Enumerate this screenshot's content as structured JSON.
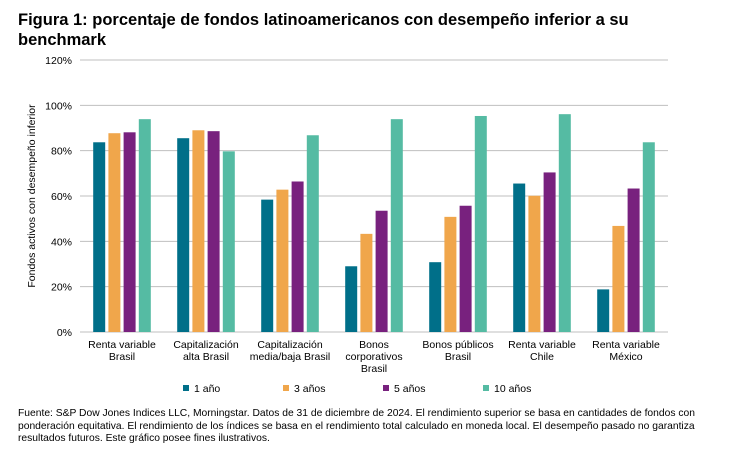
{
  "chart_data": {
    "type": "bar",
    "title": "Figura 1: porcentaje de fondos latinoamericanos con desempeño inferior a su benchmark",
    "ylabel": "Fondos activos con desempeño inferior",
    "xlabel": "",
    "ylim": [
      0,
      120
    ],
    "yticks": [
      "0%",
      "20%",
      "40%",
      "60%",
      "80%",
      "100%",
      "120%"
    ],
    "grid": true,
    "legend_position": "bottom",
    "categories": [
      [
        "Renta variable",
        "Brasil"
      ],
      [
        "Capitalización",
        "alta Brasil"
      ],
      [
        "Capitalización",
        "media/baja Brasil"
      ],
      [
        "Bonos",
        "corporativos",
        "Brasil"
      ],
      [
        "Bonos públicos",
        "Brasil"
      ],
      [
        "Renta variable",
        "Chile"
      ],
      [
        "Renta variable",
        "México"
      ]
    ],
    "series": [
      {
        "name": "1 año",
        "color": "#006f89",
        "values": [
          83.7,
          85.5,
          58.4,
          29.0,
          30.8,
          65.5,
          18.8
        ]
      },
      {
        "name": "3 años",
        "color": "#f0a64b",
        "values": [
          87.7,
          89.0,
          62.8,
          43.3,
          50.8,
          60.1,
          46.8
        ]
      },
      {
        "name": "5 años",
        "color": "#78217e",
        "values": [
          88.1,
          88.6,
          66.4,
          53.5,
          55.7,
          70.4,
          63.3
        ]
      },
      {
        "name": "10 años",
        "color": "#55bba3",
        "values": [
          93.9,
          79.7,
          86.8,
          93.9,
          95.3,
          96.1,
          83.7
        ]
      }
    ]
  },
  "source": "Fuente: S&P Dow Jones Indices LLC, Morningstar. Datos de 31 de diciembre de 2024. El rendimiento superior se basa en cantidades de fondos con ponderación equitativa. El rendimiento de los índices se basa en el rendimiento total calculado en moneda local. El desempeño pasado no garantiza resultados futuros. Este gráfico posee fines ilustrativos."
}
